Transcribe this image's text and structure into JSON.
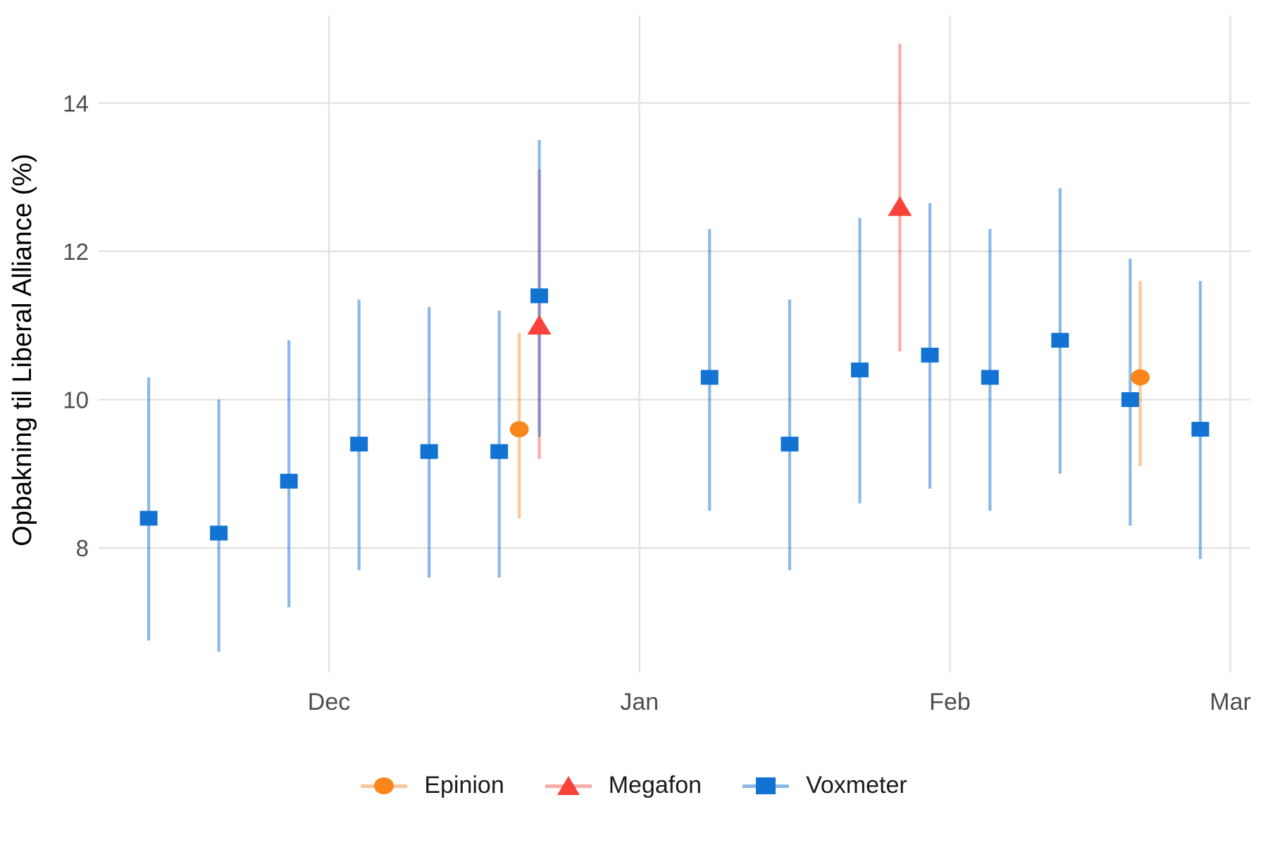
{
  "chart_data": {
    "type": "scatter",
    "title": "",
    "subtitle": "",
    "xlabel": "",
    "ylabel": "Opbakning til Liberal Alliance (%)",
    "grid": true,
    "legend_position": "bottom",
    "x_axis": {
      "tick_labels": [
        "Dec",
        "Jan",
        "Feb",
        "Mar"
      ],
      "tick_days_from_dec1": [
        0,
        31,
        62,
        90
      ],
      "domain_days_from_dec1": [
        -23,
        92
      ]
    },
    "y_axis": {
      "tick_values": [
        8,
        10,
        12,
        14
      ],
      "tick_labels": [
        "8",
        "10",
        "12",
        "14"
      ],
      "ylim": [
        6.32,
        15.18
      ]
    },
    "legend": {
      "position": "bottom",
      "entries": [
        {
          "label": "Epinion",
          "marker": "circle",
          "marker_color": "#F8861B",
          "line_color": "#FCC398"
        },
        {
          "label": "Megafon",
          "marker": "triangle",
          "marker_color": "#F8423A",
          "line_color": "#FCAAA6"
        },
        {
          "label": "Voxmeter",
          "marker": "square",
          "marker_color": "#1273D2",
          "line_color": "#8AB9E9"
        }
      ]
    },
    "series": [
      {
        "name": "Epinion",
        "marker": "circle",
        "marker_color": "#F8861B",
        "ci_color": "rgba(248,134,27,0.45)",
        "points": [
          {
            "t": 19,
            "y": 9.6,
            "lo": 8.4,
            "hi": 10.9
          },
          {
            "t": 81,
            "y": 10.3,
            "lo": 9.1,
            "hi": 11.6
          }
        ]
      },
      {
        "name": "Megafon",
        "marker": "triangle",
        "marker_color": "#F8423A",
        "ci_color": "rgba(249,66,58,0.45)",
        "points": [
          {
            "t": 21,
            "y": 11.0,
            "lo": 9.2,
            "hi": 13.1
          },
          {
            "t": 57,
            "y": 12.6,
            "lo": 10.65,
            "hi": 14.8
          }
        ]
      },
      {
        "name": "Voxmeter",
        "marker": "square",
        "marker_color": "#1273D2",
        "ci_color": "rgba(18,115,211,0.5)",
        "points": [
          {
            "t": -18,
            "y": 8.4,
            "lo": 6.75,
            "hi": 10.3
          },
          {
            "t": -11,
            "y": 8.2,
            "lo": 6.6,
            "hi": 10.0
          },
          {
            "t": -4,
            "y": 8.9,
            "lo": 7.2,
            "hi": 10.8
          },
          {
            "t": 3,
            "y": 9.4,
            "lo": 7.7,
            "hi": 11.35
          },
          {
            "t": 10,
            "y": 9.3,
            "lo": 7.6,
            "hi": 11.25
          },
          {
            "t": 17,
            "y": 9.3,
            "lo": 7.6,
            "hi": 11.2
          },
          {
            "t": 21,
            "y": 11.4,
            "lo": 9.5,
            "hi": 13.5
          },
          {
            "t": 38,
            "y": 10.3,
            "lo": 8.5,
            "hi": 12.3
          },
          {
            "t": 46,
            "y": 9.4,
            "lo": 7.7,
            "hi": 11.35
          },
          {
            "t": 53,
            "y": 10.4,
            "lo": 8.6,
            "hi": 12.45
          },
          {
            "t": 60,
            "y": 10.6,
            "lo": 8.8,
            "hi": 12.65
          },
          {
            "t": 66,
            "y": 10.3,
            "lo": 8.5,
            "hi": 12.3
          },
          {
            "t": 73,
            "y": 10.8,
            "lo": 9.0,
            "hi": 12.85
          },
          {
            "t": 80,
            "y": 10.0,
            "lo": 8.3,
            "hi": 11.9
          },
          {
            "t": 87,
            "y": 9.6,
            "lo": 7.85,
            "hi": 11.6
          }
        ]
      }
    ]
  },
  "colors": {
    "background": "#FFFFFF",
    "grid": "#E3E3E3",
    "tick_label": "#4D4D4D",
    "axis_title": "#000000",
    "legend_text": "#1A1A1A"
  }
}
